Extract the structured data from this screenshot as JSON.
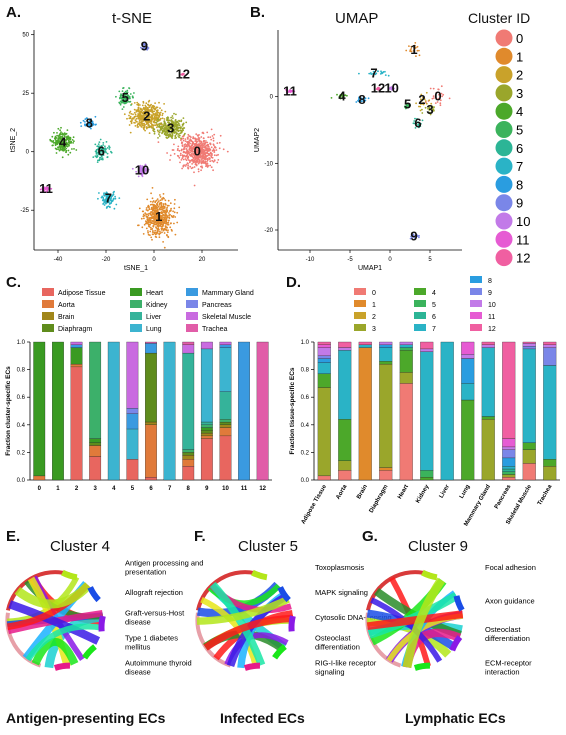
{
  "panels": {
    "A": "A.",
    "B": "B.",
    "C": "C.",
    "D": "D.",
    "E": "E.",
    "F": "F.",
    "G": "G."
  },
  "tsne": {
    "title": "t-SNE",
    "xlabel": "tSNE_1",
    "ylabel": "tSNE_2"
  },
  "umap": {
    "title": "UMAP",
    "xlabel": "UMAP1",
    "ylabel": "UMAP2"
  },
  "cluster_legend": {
    "title": "Cluster ID",
    "items": [
      {
        "label": "0",
        "color": "#f07a74"
      },
      {
        "label": "1",
        "color": "#e08a2c"
      },
      {
        "label": "2",
        "color": "#c9a22a"
      },
      {
        "label": "3",
        "color": "#9aa62b"
      },
      {
        "label": "4",
        "color": "#4ca82a"
      },
      {
        "label": "5",
        "color": "#3bb35c"
      },
      {
        "label": "6",
        "color": "#2cb596"
      },
      {
        "label": "7",
        "color": "#2ab3c6"
      },
      {
        "label": "8",
        "color": "#2a9de0"
      },
      {
        "label": "9",
        "color": "#7a86e8"
      },
      {
        "label": "10",
        "color": "#c27ae8"
      },
      {
        "label": "11",
        "color": "#e65bd3"
      },
      {
        "label": "12",
        "color": "#f05fa1"
      }
    ]
  },
  "tissue_legend": [
    {
      "label": "Adipose Tissue",
      "color": "#e8665f"
    },
    {
      "label": "Aorta",
      "color": "#e07a3a"
    },
    {
      "label": "Brain",
      "color": "#a0861a"
    },
    {
      "label": "Diaphragm",
      "color": "#5f8c1c"
    },
    {
      "label": "Heart",
      "color": "#3a9a22"
    },
    {
      "label": "Kidney",
      "color": "#3cb06a"
    },
    {
      "label": "Liver",
      "color": "#35b39a"
    },
    {
      "label": "Lung",
      "color": "#3cb4d0"
    },
    {
      "label": "Mammary Gland",
      "color": "#3a9ae0"
    },
    {
      "label": "Pancreas",
      "color": "#7a86e8"
    },
    {
      "label": "Skeletal Muscle",
      "color": "#c96be0"
    },
    {
      "label": "Trachea",
      "color": "#e15da8"
    }
  ],
  "chart_data": [
    {
      "type": "scatter",
      "name": "t-SNE",
      "xlabel": "tSNE_1",
      "ylabel": "tSNE_2",
      "xlim": [
        -50,
        35
      ],
      "ylim": [
        -42,
        52
      ],
      "xticks": [
        "-40",
        "-20",
        "0",
        "20"
      ],
      "yticks": [
        "50",
        "25",
        "0",
        "-25"
      ],
      "clusters": [
        {
          "label": "0",
          "cx": 18,
          "cy": 0,
          "sx": 7,
          "sy": 6
        },
        {
          "label": "1",
          "cx": 2,
          "cy": -28,
          "sx": 5,
          "sy": 7
        },
        {
          "label": "2",
          "cx": -3,
          "cy": 15,
          "sx": 6,
          "sy": 5
        },
        {
          "label": "3",
          "cx": 7,
          "cy": 10,
          "sx": 5,
          "sy": 4
        },
        {
          "label": "4",
          "cx": -38,
          "cy": 4,
          "sx": 4,
          "sy": 4
        },
        {
          "label": "5",
          "cx": -12,
          "cy": 23,
          "sx": 2.5,
          "sy": 3
        },
        {
          "label": "6",
          "cx": -22,
          "cy": 0,
          "sx": 2.5,
          "sy": 3
        },
        {
          "label": "7",
          "cx": -19,
          "cy": -20,
          "sx": 2.5,
          "sy": 3
        },
        {
          "label": "8",
          "cx": -27,
          "cy": 12,
          "sx": 2,
          "sy": 2
        },
        {
          "label": "9",
          "cx": -4,
          "cy": 45,
          "sx": 1.5,
          "sy": 1.5
        },
        {
          "label": "10",
          "cx": -5,
          "cy": -8,
          "sx": 2.5,
          "sy": 2
        },
        {
          "label": "11",
          "cx": -45,
          "cy": -16,
          "sx": 2,
          "sy": 1
        },
        {
          "label": "12",
          "cx": 12,
          "cy": 33,
          "sx": 0.5,
          "sy": 0.5
        }
      ]
    },
    {
      "type": "scatter",
      "name": "UMAP",
      "xlabel": "UMAP1",
      "ylabel": "UMAP2",
      "xlim": [
        -14,
        9
      ],
      "ylim": [
        -23,
        10
      ],
      "xticks": [
        "-10",
        "-5",
        "0",
        "5"
      ],
      "yticks": [
        "0",
        "-10",
        "-20"
      ],
      "clusters": [
        {
          "label": "0",
          "cx": 6,
          "cy": 0,
          "sx": 1.2,
          "sy": 1.3
        },
        {
          "label": "1",
          "cx": 3,
          "cy": 7,
          "sx": 0.9,
          "sy": 0.8
        },
        {
          "label": "2",
          "cx": 4,
          "cy": -0.5,
          "sx": 0.8,
          "sy": 1
        },
        {
          "label": "3",
          "cx": 5,
          "cy": -2,
          "sx": 0.8,
          "sy": 0.6
        },
        {
          "label": "4",
          "cx": -6,
          "cy": 0,
          "sx": 0.7,
          "sy": 0.5
        },
        {
          "label": "5",
          "cx": 2.2,
          "cy": -1.2,
          "sx": 0.4,
          "sy": 0.5
        },
        {
          "label": "6",
          "cx": 3.5,
          "cy": -4,
          "sx": 0.5,
          "sy": 0.5
        },
        {
          "label": "7",
          "cx": -2,
          "cy": 3.5,
          "sx": 1.5,
          "sy": 0.3
        },
        {
          "label": "8",
          "cx": -3.5,
          "cy": -0.5,
          "sx": 0.6,
          "sy": 0.4
        },
        {
          "label": "9",
          "cx": 3,
          "cy": -21,
          "sx": 0.5,
          "sy": 0.3
        },
        {
          "label": "10",
          "cx": 0.2,
          "cy": 1.2,
          "sx": 0.3,
          "sy": 0.3
        },
        {
          "label": "11",
          "cx": -12.5,
          "cy": 0.8,
          "sx": 0.5,
          "sy": 0.2
        },
        {
          "label": "12",
          "cx": -1.5,
          "cy": 1.2,
          "sx": 0.2,
          "sy": 0.2
        }
      ]
    },
    {
      "type": "bar",
      "stacked": true,
      "ylabel": "Fraction cluster-specific ECs",
      "ylim": [
        0,
        1.0
      ],
      "yticks": [
        "0.0",
        "0.2",
        "0.4",
        "0.6",
        "0.8",
        "1.0"
      ],
      "categories": [
        "0",
        "1",
        "2",
        "3",
        "4",
        "5",
        "6",
        "7",
        "8",
        "9",
        "10",
        "11",
        "12"
      ],
      "series_order": [
        "Adipose Tissue",
        "Aorta",
        "Brain",
        "Diaphragm",
        "Heart",
        "Kidney",
        "Liver",
        "Lung",
        "Mammary Gland",
        "Pancreas",
        "Skeletal Muscle",
        "Trachea"
      ],
      "values": [
        [
          0,
          0.03,
          0,
          0,
          0.97,
          0,
          0,
          0,
          0,
          0,
          0,
          0
        ],
        [
          0,
          0,
          0,
          0,
          1,
          0,
          0,
          0,
          0,
          0,
          0,
          0
        ],
        [
          0.82,
          0.02,
          0,
          0,
          0.12,
          0,
          0,
          0,
          0.02,
          0,
          0.02,
          0
        ],
        [
          0.17,
          0.08,
          0,
          0.02,
          0.03,
          0.7,
          0,
          0,
          0,
          0,
          0,
          0
        ],
        [
          0,
          0,
          0,
          0,
          0,
          0,
          0,
          1,
          0,
          0,
          0,
          0
        ],
        [
          0.15,
          0,
          0,
          0,
          0,
          0,
          0,
          0.22,
          0.11,
          0.04,
          0.48,
          0
        ],
        [
          0.02,
          0.38,
          0.02,
          0.5,
          0,
          0,
          0,
          0,
          0.07,
          0,
          0,
          0.01
        ],
        [
          0,
          0,
          0,
          0,
          0,
          0,
          0,
          1,
          0,
          0,
          0,
          0
        ],
        [
          0.1,
          0.05,
          0.03,
          0.02,
          0,
          0.02,
          0.7,
          0,
          0,
          0,
          0.06,
          0.02
        ],
        [
          0.3,
          0.02,
          0.02,
          0.02,
          0.02,
          0.02,
          0.02,
          0.53,
          0,
          0,
          0.05,
          0
        ],
        [
          0.32,
          0.06,
          0.02,
          0.02,
          0,
          0.02,
          0.2,
          0.32,
          0.02,
          0,
          0.02,
          0
        ],
        [
          0,
          0,
          0,
          0,
          0,
          0,
          0,
          0,
          1,
          0,
          0,
          0
        ],
        [
          0,
          0,
          0,
          0,
          0,
          0,
          0,
          0,
          0,
          0,
          0,
          1
        ]
      ]
    },
    {
      "type": "bar",
      "stacked": true,
      "ylabel": "Fraction tissue-specific ECs",
      "ylim": [
        0,
        1.0
      ],
      "yticks": [
        "0.0",
        "0.2",
        "0.4",
        "0.6",
        "0.8",
        "1.0"
      ],
      "categories": [
        "Adipose Tissue",
        "Aorta",
        "Brain",
        "Diaphragm",
        "Heart",
        "Kidney",
        "Liver",
        "Lung",
        "Mammary Gland",
        "Pancreas",
        "Skeletal Muscle",
        "Trachea"
      ],
      "series_order": [
        "0",
        "1",
        "2",
        "3",
        "4",
        "5",
        "6",
        "7",
        "8",
        "9",
        "10",
        "11",
        "12"
      ],
      "values": [
        [
          0.03,
          0,
          0,
          0.64,
          0.1,
          0,
          0,
          0.08,
          0.03,
          0.02,
          0.06,
          0.02,
          0.02
        ],
        [
          0.07,
          0,
          0,
          0.07,
          0.3,
          0,
          0,
          0.5,
          0,
          0,
          0.02,
          0,
          0.04
        ],
        [
          0,
          0.96,
          0,
          0,
          0,
          0,
          0,
          0.02,
          0,
          0,
          0,
          0,
          0.02
        ],
        [
          0.07,
          0.02,
          0,
          0.75,
          0.02,
          0,
          0,
          0.1,
          0.02,
          0,
          0.02,
          0,
          0
        ],
        [
          0.7,
          0,
          0,
          0.08,
          0.16,
          0.02,
          0,
          0.02,
          0,
          0,
          0.02,
          0,
          0
        ],
        [
          0,
          0,
          0,
          0,
          0.02,
          0.05,
          0,
          0.86,
          0,
          0,
          0.02,
          0,
          0.05
        ],
        [
          0,
          0,
          0,
          0,
          0,
          0,
          0,
          1,
          0,
          0,
          0,
          0,
          0
        ],
        [
          0,
          0,
          0,
          0,
          0.58,
          0,
          0,
          0.12,
          0.18,
          0,
          0.03,
          0.09,
          0
        ],
        [
          0,
          0,
          0,
          0.44,
          0.02,
          0,
          0,
          0.5,
          0,
          0,
          0.02,
          0,
          0.02
        ],
        [
          0.02,
          0,
          0,
          0.02,
          0,
          0.02,
          0.02,
          0.02,
          0.06,
          0.06,
          0.02,
          0.06,
          0.7
        ],
        [
          0.12,
          0,
          0,
          0.1,
          0.05,
          0,
          0,
          0.68,
          0,
          0.02,
          0.02,
          0,
          0.01
        ],
        [
          0,
          0,
          0,
          0.1,
          0.05,
          0,
          0,
          0.68,
          0,
          0.13,
          0.02,
          0,
          0.02
        ]
      ]
    }
  ],
  "clusters_legend_D_cols": [
    [
      "0",
      "1",
      "2",
      "3"
    ],
    [
      "4",
      "5",
      "6",
      "7"
    ],
    [
      "8",
      "9",
      "10",
      "11",
      "12"
    ]
  ],
  "chord_panels": [
    {
      "title": "Cluster 4",
      "caption": "Antigen-presenting ECs",
      "terms": [
        "Antigen processing and presentation",
        "Allograft rejection",
        "Graft-versus-Host disease",
        "Type 1 diabetes mellitus",
        "Autoimmune thyroid disease"
      ]
    },
    {
      "title": "Cluster 5",
      "caption": "Infected ECs",
      "terms": [
        "Toxoplasmosis",
        "MAPK signaling",
        "Cytosolic DNA-sensing",
        "Osteoclast differentiation",
        "RIG-I-like receptor signaling"
      ]
    },
    {
      "title": "Cluster 9",
      "caption": "Lymphatic ECs",
      "terms": [
        "Focal adhesion",
        "Axon guidance",
        "Osteoclast differentiation",
        "ECM-receptor interaction"
      ]
    }
  ]
}
